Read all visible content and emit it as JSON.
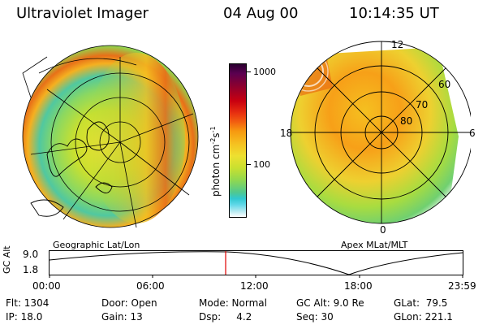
{
  "header": {
    "title": "Ultraviolet Imager",
    "date": "04 Aug 00",
    "time": "10:14:35 UT"
  },
  "colorbar": {
    "label": "photon cm",
    "label_sup1": "-2",
    "label_mid": "s",
    "label_sup2": "-1",
    "tick_1000": "1000",
    "tick_100": "100",
    "colors": [
      "#2a0030",
      "#5a0050",
      "#8a0030",
      "#c80010",
      "#e83010",
      "#f26010",
      "#f79a10",
      "#f5c020",
      "#eee030",
      "#c8e030",
      "#90d850",
      "#50c890",
      "#30c8d0",
      "#60d8e8",
      "#b0e8f0",
      "#ffffff"
    ]
  },
  "left_panel": {
    "caption": "Geographic Lat/Lon"
  },
  "right_panel": {
    "caption": "Apex MLat/MLT",
    "labels": {
      "mlt_12": "12",
      "mlt_18": "18",
      "mlt_6": "6",
      "mlt_0": "0",
      "lat_60": "60",
      "lat_70": "70",
      "lat_80": "80"
    }
  },
  "altitude_plot": {
    "ylabel": "GC Alt",
    "ytick_top": "9.0",
    "ytick_bottom": "1.8",
    "xticks": [
      "00:00",
      "06:00",
      "12:00",
      "18:00",
      "23:59"
    ],
    "marker_color": "#e00000"
  },
  "info": {
    "flt": "Flt: 1304",
    "ip": "IP: 18.0",
    "door": "Door: Open",
    "gain": "Gain: 13",
    "mode": "Mode: Normal",
    "dsp": "Dsp:     4.2",
    "gcalt": "GC Alt: 9.0 Re",
    "seq": "Seq: 30",
    "glat": "GLat:  79.5",
    "glon": "GLon: 221.1"
  }
}
